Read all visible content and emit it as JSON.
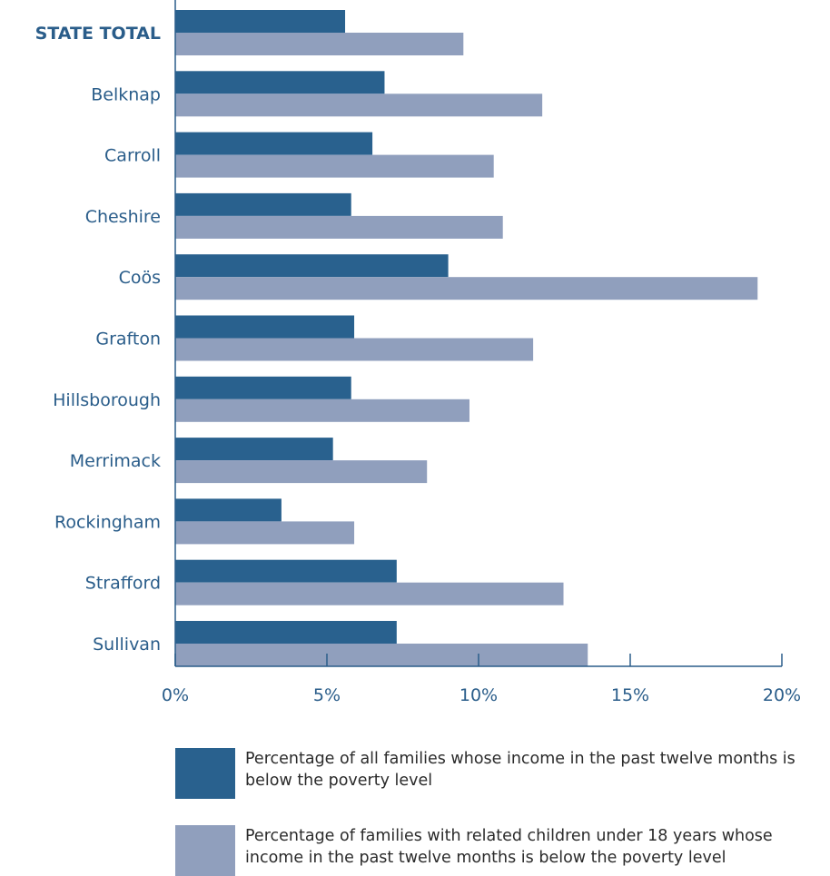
{
  "chart_data": {
    "type": "bar",
    "orientation": "horizontal",
    "categories": [
      "STATE TOTAL",
      "Belknap",
      "Carroll",
      "Cheshire",
      "Coös",
      "Grafton",
      "Hillsborough",
      "Merrimack",
      "Rockingham",
      "Strafford",
      "Sullivan"
    ],
    "highlight_category": "STATE TOTAL",
    "series": [
      {
        "name": "Percentage of all families whose income in the past twelve months is below the poverty level",
        "color": "#29618e",
        "values": [
          5.6,
          6.9,
          6.5,
          5.8,
          9.0,
          5.9,
          5.8,
          5.2,
          3.5,
          7.3,
          7.3
        ]
      },
      {
        "name": "Percentage of families with related children under 18 years whose income in the past twelve months is below the poverty level",
        "color": "#909fbd",
        "values": [
          9.5,
          12.1,
          10.5,
          10.8,
          19.2,
          11.8,
          9.7,
          8.3,
          5.9,
          12.8,
          13.6
        ]
      }
    ],
    "xlim": [
      0,
      20
    ],
    "xticks": [
      0,
      5,
      10,
      15,
      20
    ],
    "xtick_labels": [
      "0%",
      "5%",
      "10%",
      "15%",
      "20%"
    ],
    "legend_position": "bottom",
    "grid": false
  }
}
